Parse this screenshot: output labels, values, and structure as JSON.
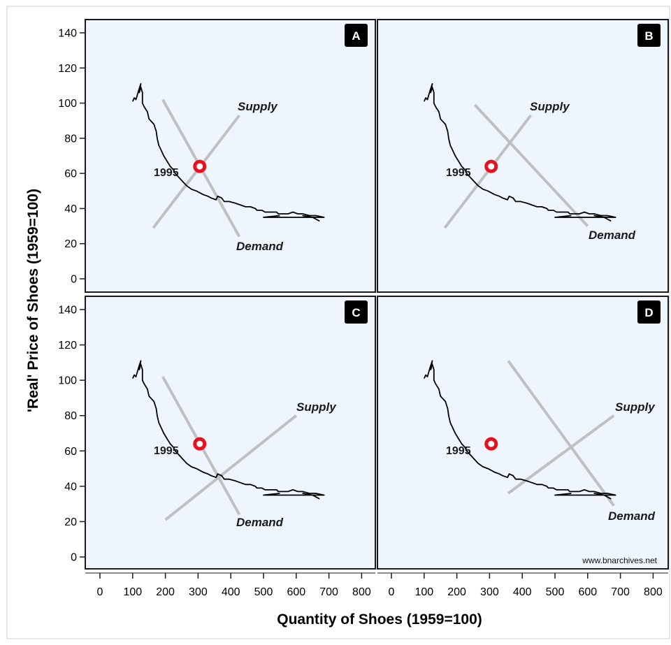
{
  "figure": {
    "xlabel": "Quantity of Shoes (1959=100)",
    "ylabel": "'Real' Price of Shoes (1959=100)",
    "source": "www.bnarchives.net"
  },
  "colors": {
    "panel_bg": "#eef5fd",
    "path": "#000000",
    "schedule_line": "#c0c0c0",
    "marker": "#e8101e",
    "letter_box": "#000000"
  },
  "chart_data": {
    "type": "line",
    "xlim": [
      0,
      800
    ],
    "ylim": [
      0,
      140
    ],
    "x_ticks": [
      0,
      100,
      200,
      300,
      400,
      500,
      600,
      700,
      800
    ],
    "y_ticks": [
      0,
      20,
      40,
      60,
      80,
      100,
      120,
      140
    ],
    "grid": false,
    "historical_path": {
      "x": [
        100,
        105,
        110,
        118,
        125,
        120,
        125,
        130,
        130,
        135,
        145,
        150,
        165,
        172,
        175,
        180,
        185,
        195,
        205,
        215,
        225,
        230,
        240,
        255,
        265,
        280,
        295,
        305,
        315,
        330,
        340,
        355,
        360,
        372,
        380,
        395,
        415,
        430,
        445,
        460,
        475,
        480,
        495,
        505,
        520,
        540,
        545,
        555,
        560,
        575,
        590,
        605,
        620,
        640,
        660,
        685,
        650,
        620,
        650,
        670,
        650,
        500,
        550
      ],
      "y": [
        101,
        103,
        102,
        107,
        111,
        106,
        109,
        106,
        100,
        98,
        95,
        91,
        88,
        84,
        80,
        76,
        74,
        70,
        67,
        64,
        62,
        60,
        58,
        55,
        53,
        51,
        50,
        49,
        48,
        47,
        46,
        45,
        47,
        46,
        44,
        44,
        43,
        42,
        41,
        41,
        40,
        39,
        39,
        38,
        38,
        38,
        37,
        37,
        37,
        37,
        38,
        37,
        37,
        36,
        36,
        35,
        35,
        36,
        35,
        33,
        35,
        35,
        36
      ]
    },
    "marker": {
      "label": "1995",
      "x": 305,
      "y": 64
    },
    "panels": [
      {
        "letter": "A",
        "supply": [
          [
            163,
            29
          ],
          [
            426,
            93
          ]
        ],
        "demand": [
          [
            192,
            102
          ],
          [
            426,
            24
          ]
        ],
        "supply_label": "Supply",
        "demand_label": "Demand"
      },
      {
        "letter": "B",
        "supply": [
          [
            163,
            29
          ],
          [
            426,
            93
          ]
        ],
        "demand": [
          [
            255,
            99
          ],
          [
            600,
            30
          ]
        ],
        "supply_label": "Supply",
        "demand_label": "Demand"
      },
      {
        "letter": "C",
        "supply": [
          [
            200,
            21
          ],
          [
            600,
            80
          ]
        ],
        "demand": [
          [
            192,
            102
          ],
          [
            426,
            24
          ]
        ],
        "supply_label": "Supply",
        "demand_label": "Demand"
      },
      {
        "letter": "D",
        "supply": [
          [
            357,
            36
          ],
          [
            680,
            80
          ]
        ],
        "demand": [
          [
            357,
            111
          ],
          [
            680,
            29
          ]
        ],
        "supply_label": "Supply",
        "demand_label": "Demand"
      }
    ]
  }
}
